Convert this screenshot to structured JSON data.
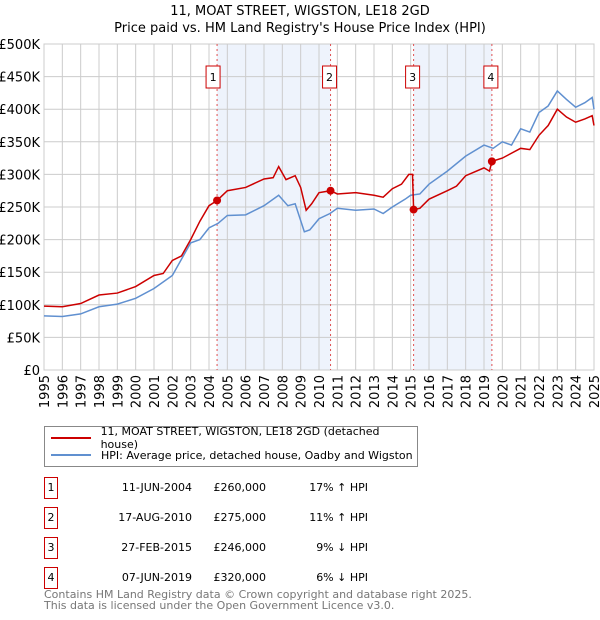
{
  "chart_data": {
    "type": "line",
    "title": "11, MOAT STREET, WIGSTON, LE18 2GD",
    "subtitle": "Price paid vs. HM Land Registry's House Price Index (HPI)",
    "xlim": [
      1995,
      2025
    ],
    "ylim": [
      0,
      500000
    ],
    "y_ticks": [
      0,
      50000,
      100000,
      150000,
      200000,
      250000,
      300000,
      350000,
      400000,
      450000,
      500000
    ],
    "y_tick_labels": [
      "£0",
      "£50K",
      "£100K",
      "£150K",
      "£200K",
      "£250K",
      "£300K",
      "£350K",
      "£400K",
      "£450K",
      "£500K"
    ],
    "x_ticks": [
      1995,
      1996,
      1997,
      1998,
      1999,
      2000,
      2001,
      2002,
      2003,
      2004,
      2005,
      2006,
      2007,
      2008,
      2009,
      2010,
      2011,
      2012,
      2013,
      2014,
      2015,
      2016,
      2017,
      2018,
      2019,
      2020,
      2021,
      2022,
      2023,
      2024,
      2025
    ],
    "grid": true,
    "series": [
      {
        "name": "11, MOAT STREET, WIGSTON, LE18 2GD (detached house)",
        "color": "#cc0000",
        "x": [
          1995,
          1996,
          1997,
          1998,
          1999,
          2000,
          2001,
          2001.5,
          2002,
          2002.5,
          2003,
          2003.5,
          2004,
          2004.44,
          2005,
          2006,
          2007,
          2007.5,
          2007.8,
          2008.2,
          2008.7,
          2009,
          2009.3,
          2009.6,
          2010,
          2010.63,
          2011,
          2012,
          2013,
          2013.5,
          2014,
          2014.5,
          2014.9,
          2015.1,
          2015.16,
          2015.5,
          2016,
          2017,
          2017.5,
          2018,
          2019,
          2019.3,
          2019.43,
          2020,
          2021,
          2021.5,
          2022,
          2022.5,
          2023,
          2023.5,
          2024,
          2024.5,
          2024.9,
          2025
        ],
        "y": [
          98000,
          97000,
          102000,
          115000,
          118000,
          128000,
          145000,
          148000,
          168000,
          175000,
          200000,
          228000,
          252000,
          260000,
          275000,
          280000,
          293000,
          295000,
          312000,
          292000,
          298000,
          280000,
          245000,
          255000,
          272000,
          275000,
          270000,
          272000,
          268000,
          265000,
          278000,
          285000,
          300000,
          300000,
          246000,
          248000,
          262000,
          275000,
          282000,
          298000,
          310000,
          305000,
          320000,
          325000,
          340000,
          338000,
          360000,
          375000,
          400000,
          388000,
          380000,
          385000,
          390000,
          375000
        ]
      },
      {
        "name": "HPI: Average price, detached house, Oadby and Wigston",
        "color": "#6090d0",
        "x": [
          1995,
          1996,
          1997,
          1998,
          1999,
          2000,
          2001,
          2002,
          2003,
          2003.5,
          2004,
          2004.5,
          2005,
          2006,
          2007,
          2007.8,
          2008.3,
          2008.7,
          2009.2,
          2009.5,
          2010,
          2010.6,
          2011,
          2012,
          2013,
          2013.5,
          2014,
          2014.7,
          2015,
          2015.5,
          2016,
          2017,
          2018,
          2019,
          2019.5,
          2020,
          2020.5,
          2021,
          2021.5,
          2022,
          2022.5,
          2023,
          2023.5,
          2024,
          2024.5,
          2024.9,
          2025
        ],
        "y": [
          83000,
          82000,
          86000,
          97000,
          101000,
          110000,
          125000,
          145000,
          195000,
          200000,
          218000,
          225000,
          237000,
          238000,
          252000,
          268000,
          252000,
          255000,
          212000,
          215000,
          232000,
          240000,
          248000,
          245000,
          247000,
          240000,
          250000,
          262000,
          268000,
          270000,
          285000,
          305000,
          328000,
          345000,
          340000,
          350000,
          345000,
          370000,
          365000,
          395000,
          405000,
          428000,
          415000,
          403000,
          410000,
          418000,
          400000
        ]
      }
    ],
    "sales": [
      {
        "id": "1",
        "x": 2004.44,
        "date": "11-JUN-2004",
        "price": "£260,000",
        "value": 260000,
        "hpi": "17% ↑ HPI"
      },
      {
        "id": "2",
        "x": 2010.63,
        "date": "17-AUG-2010",
        "price": "£275,000",
        "value": 275000,
        "hpi": "11% ↑ HPI"
      },
      {
        "id": "3",
        "x": 2015.16,
        "date": "27-FEB-2015",
        "price": "£246,000",
        "value": 246000,
        "hpi": "9% ↓ HPI"
      },
      {
        "id": "4",
        "x": 2019.43,
        "date": "07-JUN-2019",
        "price": "£320,000",
        "value": 320000,
        "hpi": "6% ↓ HPI"
      }
    ],
    "shaded_ranges": [
      [
        2004.44,
        2010.63
      ],
      [
        2015.16,
        2019.43
      ]
    ],
    "legend_position": "below"
  },
  "footer": {
    "line1": "Contains HM Land Registry data © Crown copyright and database right 2025.",
    "line2": "This data is licensed under the Open Government Licence v3.0."
  }
}
